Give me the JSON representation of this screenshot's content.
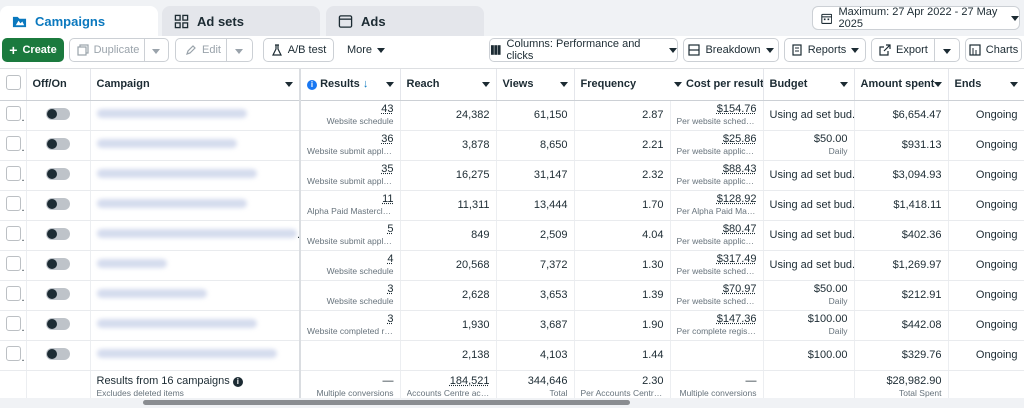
{
  "tabs": [
    {
      "label": "Campaigns",
      "active": true,
      "icon": "folder-icon"
    },
    {
      "label": "Ad sets",
      "active": false,
      "icon": "grid-icon"
    },
    {
      "label": "Ads",
      "active": false,
      "icon": "ad-icon"
    }
  ],
  "date_range": "Maximum: 27 Apr 2022 - 27 May 2025",
  "toolbar": {
    "create": "Create",
    "duplicate": "Duplicate",
    "edit": "Edit",
    "ab_test": "A/B test",
    "more": "More",
    "columns": "Columns: Performance and clicks",
    "breakdown": "Breakdown",
    "reports": "Reports",
    "export": "Export",
    "charts": "Charts"
  },
  "columns": [
    "Off/On",
    "Campaign",
    "Results",
    "Reach",
    "Views",
    "Frequency",
    "Cost per result",
    "Budget",
    "Amount spent",
    "Ends"
  ],
  "rows": [
    {
      "results": "43",
      "results_sub": "Website schedule",
      "reach": "24,382",
      "views": "61,150",
      "frequency": "2.87",
      "cpr": "$154.76",
      "cpr_sub": "Per website schedule",
      "budget": "Using ad set bud...",
      "budget_sub": "",
      "spent": "$6,654.47",
      "ends": "Ongoing"
    },
    {
      "results": "36",
      "results_sub": "Website submit applic...",
      "reach": "3,878",
      "views": "8,650",
      "frequency": "2.21",
      "cpr": "$25.86",
      "cpr_sub": "Per website applicatio...",
      "budget": "$50.00",
      "budget_sub": "Daily",
      "spent": "$931.13",
      "ends": "Ongoing"
    },
    {
      "results": "35",
      "results_sub": "Website submit applic...",
      "reach": "16,275",
      "views": "31,147",
      "frequency": "2.32",
      "cpr": "$88.43",
      "cpr_sub": "Per website applicatio...",
      "budget": "Using ad set bud...",
      "budget_sub": "",
      "spent": "$3,094.93",
      "ends": "Ongoing"
    },
    {
      "results": "11",
      "results_sub": "Alpha Paid Masterclass",
      "reach": "11,311",
      "views": "13,444",
      "frequency": "1.70",
      "cpr": "$128.92",
      "cpr_sub": "Per Alpha Paid Master...",
      "budget": "Using ad set bud...",
      "budget_sub": "",
      "spent": "$1,418.11",
      "ends": "Ongoing"
    },
    {
      "results": "5",
      "results_sub": "Website submit applic...",
      "reach": "849",
      "views": "2,509",
      "frequency": "4.04",
      "cpr": "$80.47",
      "cpr_sub": "Per website applicatio...",
      "budget": "Using ad set bud...",
      "budget_sub": "",
      "spent": "$402.36",
      "ends": "Ongoing"
    },
    {
      "results": "4",
      "results_sub": "Website schedule",
      "reach": "20,568",
      "views": "7,372",
      "frequency": "1.30",
      "cpr": "$317.49",
      "cpr_sub": "Per website schedule",
      "budget": "Using ad set bud...",
      "budget_sub": "",
      "spent": "$1,269.97",
      "ends": "Ongoing"
    },
    {
      "results": "3",
      "results_sub": "Website schedule",
      "reach": "2,628",
      "views": "3,653",
      "frequency": "1.39",
      "cpr": "$70.97",
      "cpr_sub": "Per website schedule",
      "budget": "$50.00",
      "budget_sub": "Daily",
      "spent": "$212.91",
      "ends": "Ongoing"
    },
    {
      "results": "3",
      "results_sub": "Website completed re...",
      "reach": "1,930",
      "views": "3,687",
      "frequency": "1.90",
      "cpr": "$147.36",
      "cpr_sub": "Per complete registrat...",
      "budget": "$100.00",
      "budget_sub": "Daily",
      "spent": "$442.08",
      "ends": "Ongoing"
    },
    {
      "results": "",
      "results_sub": "",
      "reach": "2,138",
      "views": "4,103",
      "frequency": "1.44",
      "cpr": "",
      "cpr_sub": "",
      "budget": "$100.00",
      "budget_sub": "",
      "spent": "$329.76",
      "ends": "Ongoing"
    }
  ],
  "footer": {
    "campaign": "Results from 16 campaigns",
    "campaign_sub": "Excludes deleted items",
    "results": "—",
    "results_sub": "Multiple conversions",
    "reach": "184,521",
    "reach_sub": "Accounts Centre acco...",
    "views": "344,646",
    "views_sub": "Total",
    "frequency": "2.30",
    "frequency_sub": "Per Accounts Centre a...",
    "cpr": "—",
    "cpr_sub": "Multiple conversions",
    "spent": "$28,982.90",
    "spent_sub": "Total Spent"
  }
}
